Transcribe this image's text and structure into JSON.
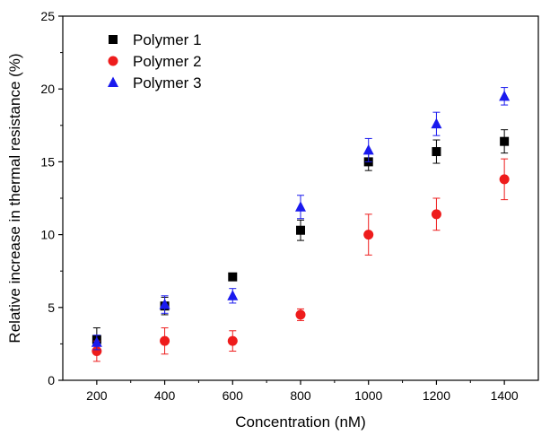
{
  "chart_data": {
    "type": "scatter",
    "title": "",
    "xlabel": "Concentration (nM)",
    "ylabel": "Relative increase in thermal resistance (%)",
    "xlim": [
      100,
      1500
    ],
    "ylim": [
      0,
      25
    ],
    "xticks": [
      200,
      400,
      600,
      800,
      1000,
      1200,
      1400
    ],
    "yticks": [
      0,
      5,
      10,
      15,
      20,
      25
    ],
    "xtick_labels": [
      "200",
      "400",
      "600",
      "800",
      "1000",
      "1200",
      "1400"
    ],
    "ytick_labels": [
      "0",
      "5",
      "10",
      "15",
      "20",
      "25"
    ],
    "grid": false,
    "legend_position": "top-left",
    "series": [
      {
        "name": "Polymer 1",
        "marker": "square",
        "color": "#000000",
        "x": [
          200,
          400,
          600,
          800,
          1000,
          1200,
          1400
        ],
        "y": [
          2.8,
          5.1,
          7.1,
          10.3,
          15.0,
          15.7,
          16.4
        ],
        "error": [
          0.8,
          0.6,
          0.2,
          0.7,
          0.6,
          0.8,
          0.8
        ]
      },
      {
        "name": "Polymer 2",
        "marker": "circle",
        "color": "#ee1c1c",
        "x": [
          200,
          400,
          600,
          800,
          1000,
          1200,
          1400
        ],
        "y": [
          2.0,
          2.7,
          2.7,
          4.5,
          10.0,
          11.4,
          13.8
        ],
        "error": [
          0.7,
          0.9,
          0.7,
          0.4,
          1.4,
          1.1,
          1.4
        ]
      },
      {
        "name": "Polymer 3",
        "marker": "triangle",
        "color": "#1a1aee",
        "x": [
          200,
          400,
          600,
          800,
          1000,
          1200,
          1400
        ],
        "y": [
          2.6,
          5.2,
          5.8,
          11.9,
          15.8,
          17.6,
          19.5
        ],
        "error": [
          0.5,
          0.6,
          0.5,
          0.8,
          0.8,
          0.8,
          0.6
        ]
      }
    ]
  }
}
